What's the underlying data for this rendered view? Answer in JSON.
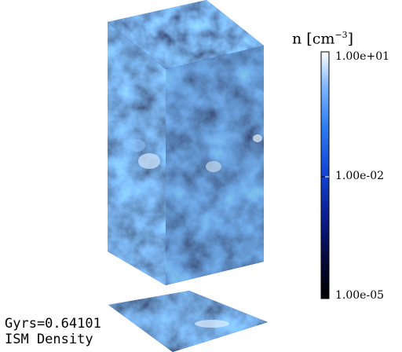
{
  "colorbar": {
    "title_prefix": "n [cm",
    "title_exponent": "−3",
    "title_suffix": "]",
    "scale": "log",
    "ticks": [
      "1.00e+01",
      "1.00e-02",
      "1.00e-05"
    ],
    "colors": [
      "#000000",
      "#040a40",
      "#0a1f95",
      "#1448d8",
      "#2f7ef2",
      "#7fb6ff",
      "#ffffff"
    ]
  },
  "captions": {
    "time": "Gyrs=0.64101",
    "field": "ISM Density"
  }
}
